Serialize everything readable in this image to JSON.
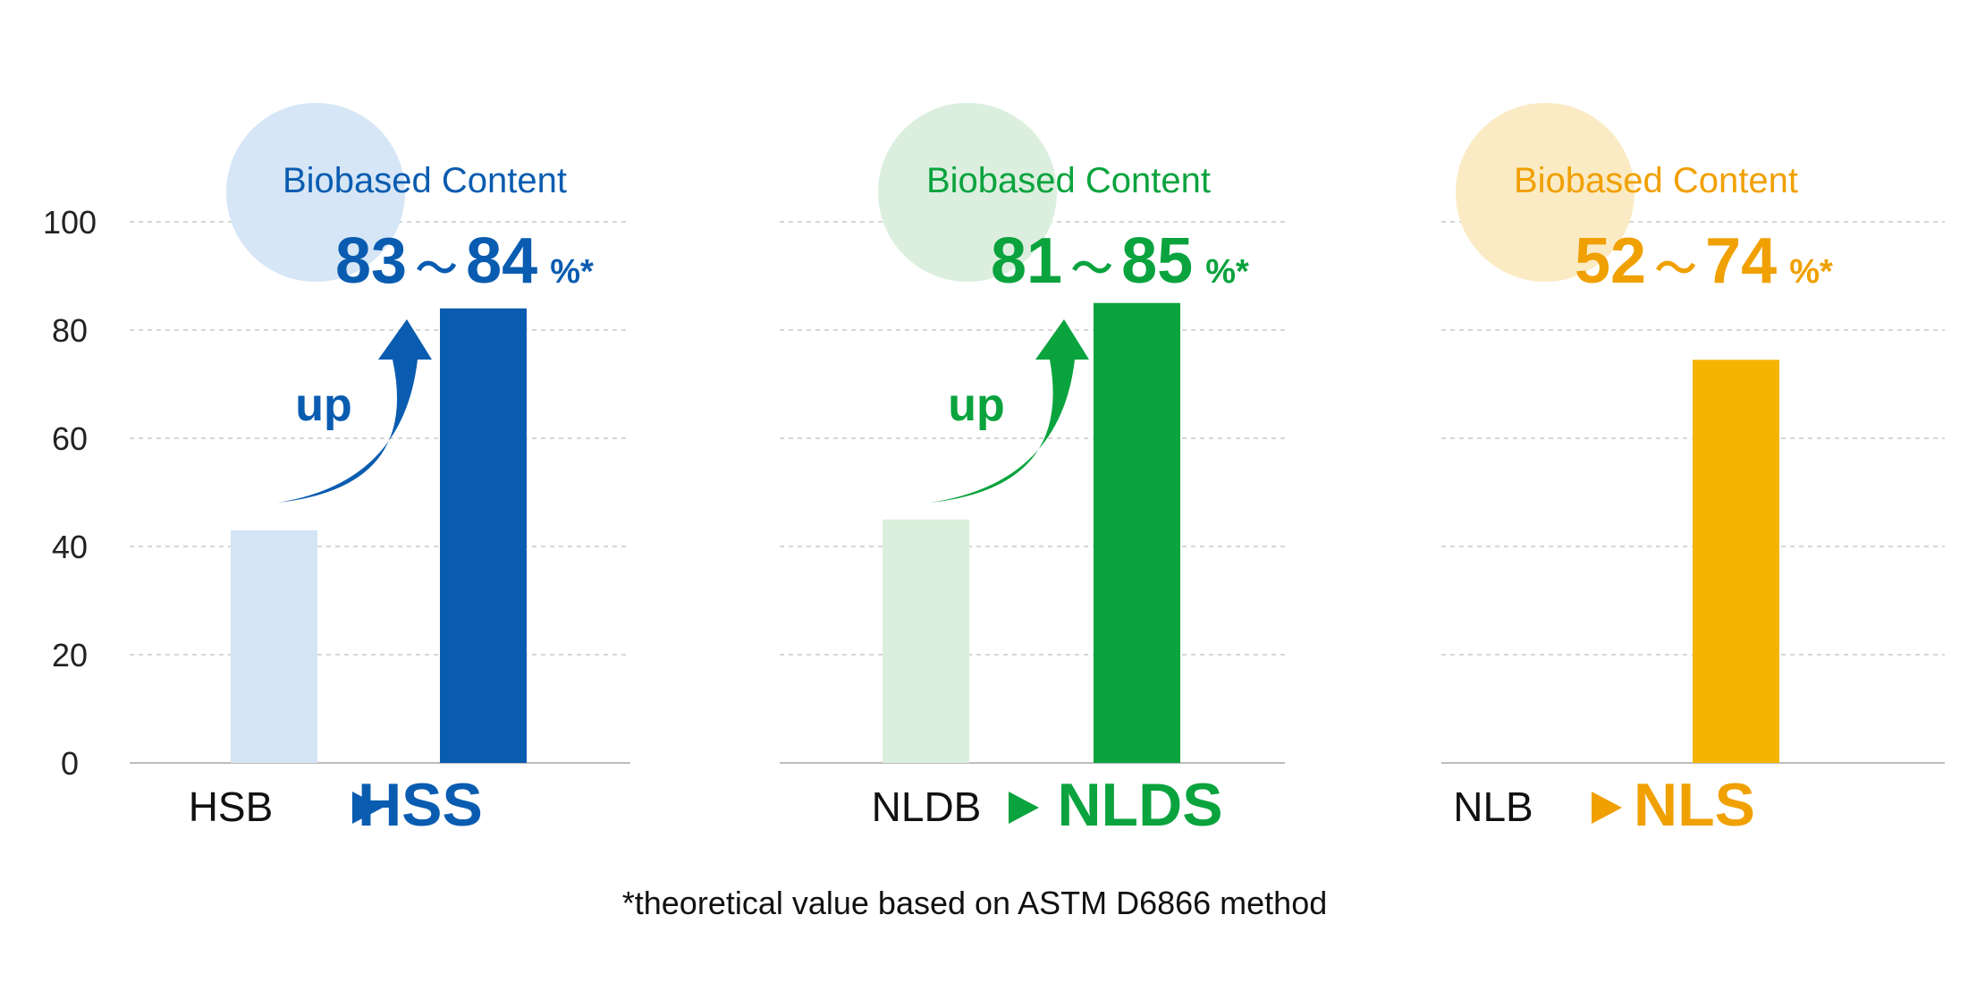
{
  "chart_data": {
    "type": "bar",
    "ylim": [
      0,
      100
    ],
    "yticks": [
      "0",
      "20",
      "40",
      "60",
      "80",
      "100"
    ],
    "grid": true,
    "footnote": "*theoretical value based on ASTM D6866 method",
    "panels": [
      {
        "circle_label": "Biobased Content",
        "range_low": "83",
        "range_sep": "～",
        "range_high": "84",
        "range_unit": "%*",
        "arrow_label": "up",
        "from_label": "HSB",
        "to_label": "HSS",
        "from_value": 43,
        "to_value": 84,
        "color": "#0a5cb0",
        "light_color": "#d4e4f5",
        "circle_color": "#d6e6f6"
      },
      {
        "circle_label": "Biobased Content",
        "range_low": "81",
        "range_sep": "～",
        "range_high": "85",
        "range_unit": "%*",
        "arrow_label": "up",
        "from_label": "NLDB",
        "to_label": "NLDS",
        "from_value": 45,
        "to_value": 85,
        "color": "#0aa33e",
        "light_color": "#dcefdc",
        "circle_color": "#dcefdf"
      },
      {
        "circle_label": "Biobased Content",
        "range_low": "52",
        "range_sep": "～",
        "range_high": "74",
        "range_unit": "%*",
        "from_label": "NLB",
        "to_label": "NLS",
        "to_value": 74.5,
        "color": "#f5b400",
        "text_color": "#f0a000",
        "circle_color": "#fbebc5"
      }
    ]
  }
}
